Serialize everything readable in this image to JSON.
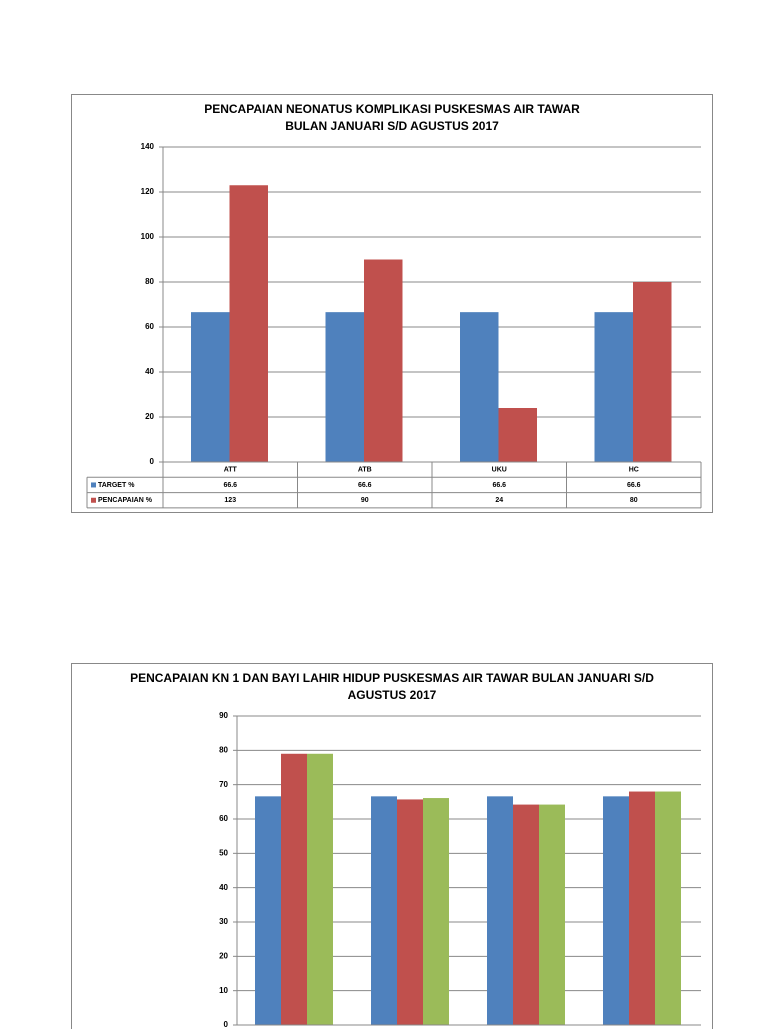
{
  "chart_data": [
    {
      "type": "bar",
      "title": [
        "PENCAPAIAN NEONATUS KOMPLIKASI PUSKESMAS AIR TAWAR",
        "BULAN JANUARI S/D AGUSTUS 2017"
      ],
      "categories": [
        "ATT",
        "ATB",
        "UKU",
        "HC"
      ],
      "series": [
        {
          "name": "TARGET %",
          "color": "#4f81bd",
          "values": [
            66.6,
            66.6,
            66.6,
            66.6
          ]
        },
        {
          "name": "PENCAPAIAN %",
          "color": "#c0504d",
          "values": [
            123,
            90,
            24,
            80
          ]
        }
      ],
      "ylim": [
        0,
        140
      ],
      "yticks": [
        0,
        20,
        40,
        60,
        80,
        100,
        120,
        140
      ],
      "grid": true,
      "data_table": true
    },
    {
      "type": "bar",
      "title": [
        "PENCAPAIAN KN 1 DAN BAYI LAHIR HIDUP PUSKESMAS AIR TAWAR BULAN JANUARI S/D",
        "AGUSTUS 2017"
      ],
      "categories": [
        null,
        null,
        null,
        null
      ],
      "series": [
        {
          "color": "#4f81bd",
          "values": [
            66.6,
            66.6,
            66.6,
            66.6
          ]
        },
        {
          "color": "#c0504d",
          "values": [
            79,
            65.7,
            64.2,
            68
          ]
        },
        {
          "color": "#9bbb59",
          "values": [
            79,
            66.1,
            64.2,
            68
          ]
        }
      ],
      "ylim": [
        0,
        90
      ],
      "yticks": [
        0,
        10,
        20,
        30,
        40,
        50,
        60,
        70,
        80,
        90
      ],
      "grid": true,
      "data_table": false
    }
  ]
}
